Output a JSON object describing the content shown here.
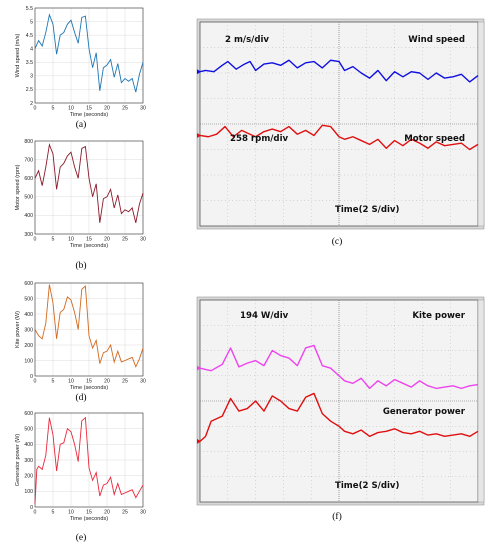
{
  "colors": {
    "wind": "#1f77b4",
    "motor": "#8b1a2b",
    "kite": "#d2691e",
    "generator": "#e8283c",
    "scope_bg": "#f3f3f3",
    "scope_grid": "#666666",
    "scope_blue": "#1010e0",
    "scope_red": "#e01010",
    "scope_magenta": "#ee44ee"
  },
  "chart_data": [
    {
      "id": "a",
      "type": "line",
      "label": "(a)",
      "xlabel": "Time (seconds)",
      "ylabel": "Wind speed (m/s)",
      "xlim": [
        0,
        30
      ],
      "ylim": [
        2,
        5.5
      ],
      "xticks": [
        0,
        5,
        10,
        15,
        20,
        25,
        30
      ],
      "yticks": [
        2,
        2.5,
        3,
        3.5,
        4,
        4.5,
        5,
        5.5
      ],
      "ytick_labels": [
        "2",
        "2.5",
        "3",
        "3.5",
        "4",
        "4.5",
        "5",
        "5.5"
      ],
      "series": [
        {
          "x": [
            0,
            1,
            2,
            3,
            4,
            5,
            6,
            7,
            8,
            9,
            10,
            11,
            12,
            13,
            14,
            15,
            16,
            17,
            18,
            19,
            20,
            21,
            22,
            23,
            24,
            25,
            26,
            27,
            28,
            29,
            30
          ],
          "y": [
            4.0,
            4.3,
            4.1,
            4.6,
            5.25,
            4.9,
            3.8,
            4.5,
            4.6,
            4.9,
            5.05,
            4.6,
            4.2,
            5.15,
            5.2,
            4.0,
            3.3,
            3.85,
            2.45,
            3.3,
            3.4,
            3.6,
            2.95,
            3.45,
            2.75,
            2.9,
            2.8,
            2.9,
            2.4,
            3.05,
            3.5
          ]
        }
      ]
    },
    {
      "id": "b",
      "type": "line",
      "label": "(b)",
      "xlabel": "Time (seconds)",
      "ylabel": "Motor speed (rpm)",
      "xlim": [
        0,
        30
      ],
      "ylim": [
        300,
        800
      ],
      "xticks": [
        0,
        5,
        10,
        15,
        20,
        25,
        30
      ],
      "yticks": [
        300,
        400,
        500,
        600,
        700,
        800
      ],
      "ytick_labels": [
        "300",
        "400",
        "500",
        "600",
        "700",
        "800"
      ],
      "series": [
        {
          "x": [
            0,
            1,
            2,
            3,
            4,
            5,
            6,
            7,
            8,
            9,
            10,
            11,
            12,
            13,
            14,
            15,
            16,
            17,
            18,
            19,
            20,
            21,
            22,
            23,
            24,
            25,
            26,
            27,
            28,
            29,
            30
          ],
          "y": [
            600,
            640,
            560,
            660,
            780,
            730,
            540,
            660,
            680,
            720,
            740,
            660,
            600,
            760,
            770,
            600,
            500,
            570,
            360,
            490,
            500,
            540,
            440,
            510,
            410,
            430,
            420,
            440,
            360,
            460,
            520
          ]
        }
      ]
    },
    {
      "id": "d",
      "type": "line",
      "label": "(d)",
      "xlabel": "Time (seconds)",
      "ylabel": "Kite power (W)",
      "xlim": [
        0,
        30
      ],
      "ylim": [
        0,
        600
      ],
      "xticks": [
        0,
        5,
        10,
        15,
        20,
        25,
        30
      ],
      "yticks": [
        0,
        100,
        200,
        300,
        400,
        500,
        600
      ],
      "ytick_labels": [
        "0",
        "100",
        "200",
        "300",
        "400",
        "500",
        "600"
      ],
      "series": [
        {
          "x": [
            0,
            1,
            2,
            3,
            4,
            5,
            6,
            7,
            8,
            9,
            10,
            11,
            12,
            13,
            14,
            15,
            16,
            17,
            18,
            19,
            20,
            21,
            22,
            23,
            24,
            25,
            26,
            27,
            28,
            29,
            30
          ],
          "y": [
            300,
            260,
            240,
            340,
            590,
            470,
            240,
            410,
            430,
            510,
            490,
            410,
            300,
            560,
            580,
            260,
            180,
            230,
            80,
            150,
            160,
            200,
            90,
            160,
            90,
            100,
            110,
            120,
            60,
            110,
            180
          ]
        }
      ]
    },
    {
      "id": "e",
      "type": "line",
      "label": "(e)",
      "xlabel": "Time (seconds)",
      "ylabel": "Generator power (W)",
      "xlim": [
        0,
        30
      ],
      "ylim": [
        0,
        600
      ],
      "xticks": [
        0,
        5,
        10,
        15,
        20,
        25,
        30
      ],
      "yticks": [
        0,
        100,
        200,
        300,
        400,
        500,
        600
      ],
      "ytick_labels": [
        "0",
        "100",
        "200",
        "300",
        "400",
        "500",
        "600"
      ],
      "series": [
        {
          "x": [
            0,
            0.5,
            1,
            2,
            3,
            4,
            5,
            6,
            7,
            8,
            9,
            10,
            11,
            12,
            13,
            14,
            15,
            16,
            17,
            18,
            19,
            20,
            21,
            22,
            23,
            24,
            25,
            26,
            27,
            28,
            29,
            30
          ],
          "y": [
            20,
            240,
            260,
            240,
            330,
            570,
            460,
            230,
            400,
            410,
            500,
            480,
            400,
            290,
            550,
            570,
            250,
            170,
            220,
            70,
            140,
            150,
            190,
            80,
            150,
            80,
            90,
            100,
            110,
            60,
            100,
            140
          ]
        }
      ]
    },
    {
      "id": "c",
      "type": "line",
      "label": "(c)",
      "scope_texts": [
        "2 m/s/div",
        "Wind speed",
        "258 rpm/div",
        "Motor speed",
        "Time(2 S/div)"
      ],
      "xlim": [
        0,
        10
      ],
      "ylim": [
        0,
        8
      ],
      "series": [
        {
          "name": "Wind speed",
          "x": [
            0,
            0.2,
            0.5,
            0.8,
            1.0,
            1.3,
            1.6,
            1.8,
            2.0,
            2.3,
            2.6,
            2.9,
            3.2,
            3.5,
            3.8,
            4.1,
            4.4,
            4.7,
            5.0,
            5.2,
            5.5,
            5.8,
            6.1,
            6.4,
            6.7,
            7.0,
            7.3,
            7.6,
            7.9,
            8.2,
            8.5,
            8.8,
            9.1,
            9.4,
            9.7,
            10.0
          ],
          "y": [
            6.05,
            6.1,
            6.05,
            6.3,
            6.45,
            6.15,
            6.35,
            6.45,
            6.1,
            6.35,
            6.4,
            6.3,
            6.5,
            6.2,
            6.4,
            6.45,
            6.2,
            6.5,
            6.45,
            6.1,
            6.25,
            6.0,
            5.8,
            6.1,
            5.7,
            6.05,
            5.85,
            6.05,
            6.0,
            5.75,
            6.0,
            5.8,
            5.85,
            5.95,
            5.65,
            5.9
          ]
        },
        {
          "name": "Motor speed",
          "x": [
            0,
            0.3,
            0.6,
            0.9,
            1.2,
            1.5,
            1.8,
            2.0,
            2.3,
            2.6,
            2.9,
            3.2,
            3.5,
            3.8,
            4.1,
            4.4,
            4.7,
            5.0,
            5.2,
            5.5,
            5.8,
            6.1,
            6.4,
            6.7,
            7.0,
            7.3,
            7.6,
            7.9,
            8.2,
            8.5,
            8.8,
            9.1,
            9.4,
            9.7,
            10.0
          ],
          "y": [
            3.55,
            3.5,
            3.6,
            3.9,
            3.5,
            3.75,
            3.6,
            3.5,
            3.7,
            3.8,
            3.7,
            3.9,
            3.6,
            3.75,
            3.55,
            3.95,
            3.9,
            3.5,
            3.4,
            3.5,
            3.35,
            3.2,
            3.4,
            3.05,
            3.35,
            3.15,
            3.4,
            3.25,
            3.05,
            3.3,
            3.15,
            3.2,
            3.25,
            3.0,
            3.2
          ]
        }
      ]
    },
    {
      "id": "f",
      "type": "line",
      "label": "(f)",
      "scope_texts": [
        "194 W/div",
        "Kite power",
        "Generator power",
        "Time(2 S/div)"
      ],
      "xlim": [
        0,
        10
      ],
      "ylim": [
        0,
        8
      ],
      "series": [
        {
          "name": "Kite power",
          "x": [
            0,
            0.4,
            0.8,
            1.1,
            1.4,
            1.7,
            2.0,
            2.3,
            2.6,
            2.9,
            3.2,
            3.5,
            3.8,
            4.1,
            4.4,
            4.7,
            5.0,
            5.2,
            5.5,
            5.8,
            6.1,
            6.4,
            6.7,
            7.0,
            7.3,
            7.6,
            7.9,
            8.2,
            8.5,
            8.8,
            9.1,
            9.4,
            9.7,
            10.0
          ],
          "y": [
            5.3,
            5.2,
            5.45,
            6.1,
            5.35,
            5.5,
            5.6,
            5.4,
            6.0,
            5.8,
            5.7,
            5.4,
            6.1,
            6.2,
            5.4,
            5.3,
            5.0,
            4.8,
            4.7,
            4.9,
            4.5,
            4.8,
            4.6,
            4.85,
            4.7,
            4.55,
            4.8,
            4.6,
            4.5,
            4.55,
            4.6,
            4.5,
            4.6,
            4.65
          ]
        },
        {
          "name": "Generator power",
          "x": [
            0,
            0.2,
            0.4,
            0.8,
            1.1,
            1.4,
            1.7,
            2.0,
            2.3,
            2.6,
            2.9,
            3.2,
            3.5,
            3.8,
            4.1,
            4.4,
            4.7,
            5.0,
            5.2,
            5.5,
            5.8,
            6.1,
            6.4,
            6.7,
            7.0,
            7.3,
            7.6,
            7.9,
            8.2,
            8.5,
            8.8,
            9.1,
            9.4,
            9.7,
            10.0
          ],
          "y": [
            2.4,
            2.6,
            3.2,
            3.4,
            4.1,
            3.6,
            3.7,
            4.0,
            3.6,
            4.2,
            4.0,
            3.7,
            3.6,
            4.15,
            4.3,
            3.5,
            3.2,
            3.0,
            2.8,
            2.7,
            2.85,
            2.6,
            2.75,
            2.8,
            2.9,
            2.75,
            2.7,
            2.8,
            2.65,
            2.7,
            2.6,
            2.65,
            2.7,
            2.6,
            2.8
          ]
        }
      ]
    }
  ]
}
